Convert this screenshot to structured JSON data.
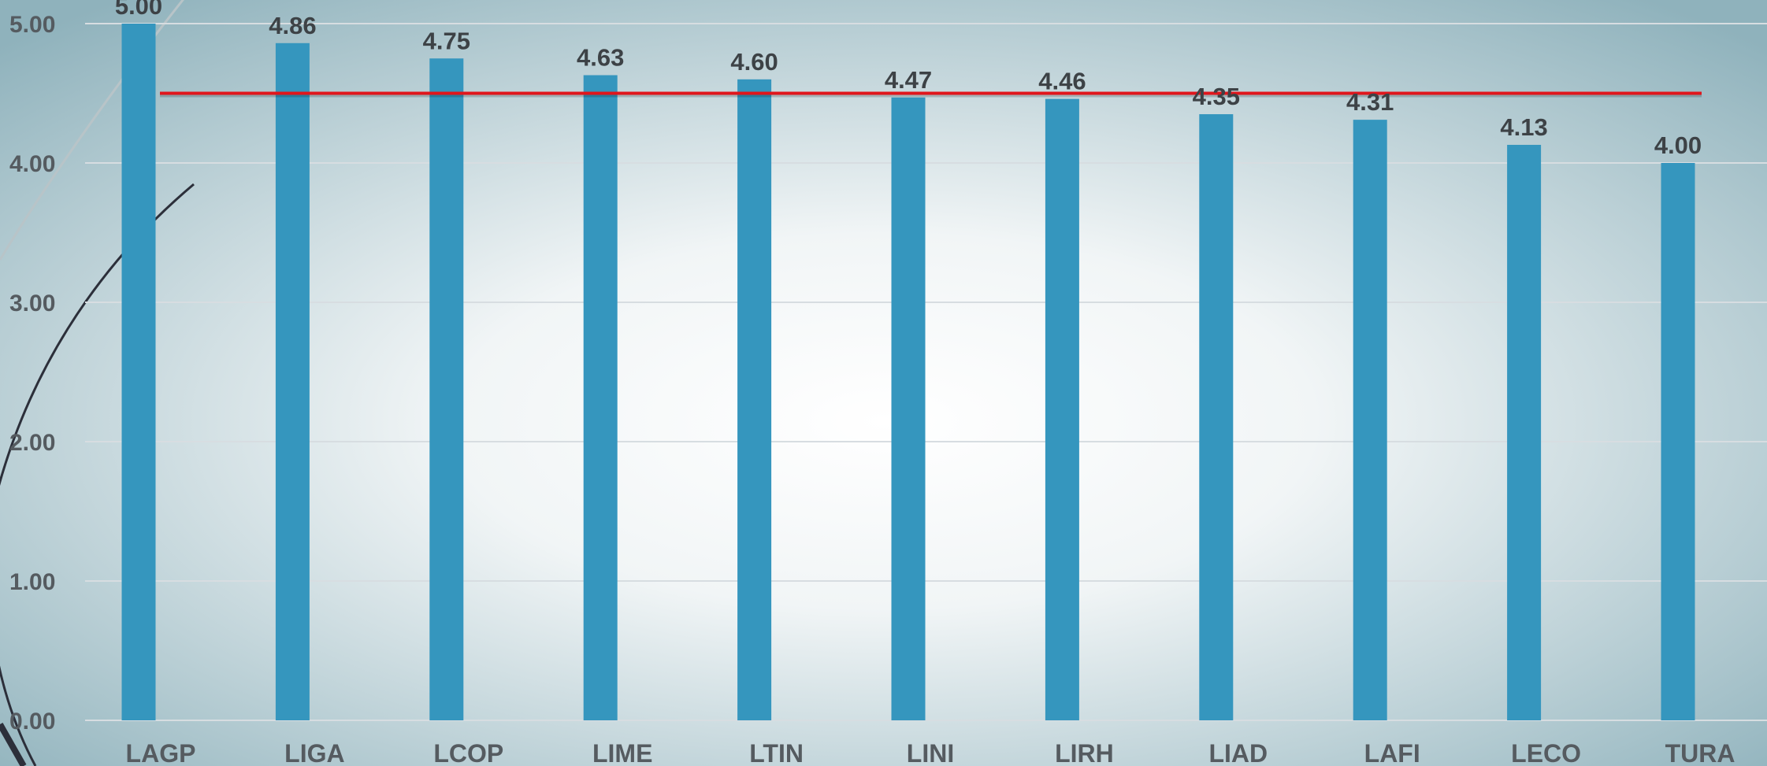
{
  "chart_data": {
    "type": "bar",
    "categories": [
      "LAGP",
      "LIGA",
      "LCOP",
      "LIME",
      "LTIN",
      "LINI",
      "LIRH",
      "LIAD",
      "LAFI",
      "LECO",
      "TURA"
    ],
    "values": [
      5.0,
      4.86,
      4.75,
      4.63,
      4.6,
      4.47,
      4.46,
      4.35,
      4.31,
      4.13,
      4.0
    ],
    "data_labels": [
      "5.00",
      "4.86",
      "4.75",
      "4.63",
      "4.60",
      "4.47",
      "4.46",
      "4.35",
      "4.31",
      "4.13",
      "4.00"
    ],
    "yticks": [
      0,
      1,
      2,
      3,
      4,
      5
    ],
    "ytick_labels": [
      "0.00",
      "1.00",
      "2.00",
      "3.00",
      "4.00",
      "5.00"
    ],
    "ylim": [
      0,
      5
    ],
    "reference_line": {
      "value": 4.5,
      "color": "#e0161c"
    },
    "grid": true,
    "legend": "none",
    "title": "",
    "xlabel": "",
    "ylabel": "",
    "colors": {
      "bar": "#3596be",
      "gridline": "#d7dde1",
      "background_center": "#ffffff",
      "background_edge": "#8fb2bc"
    }
  }
}
